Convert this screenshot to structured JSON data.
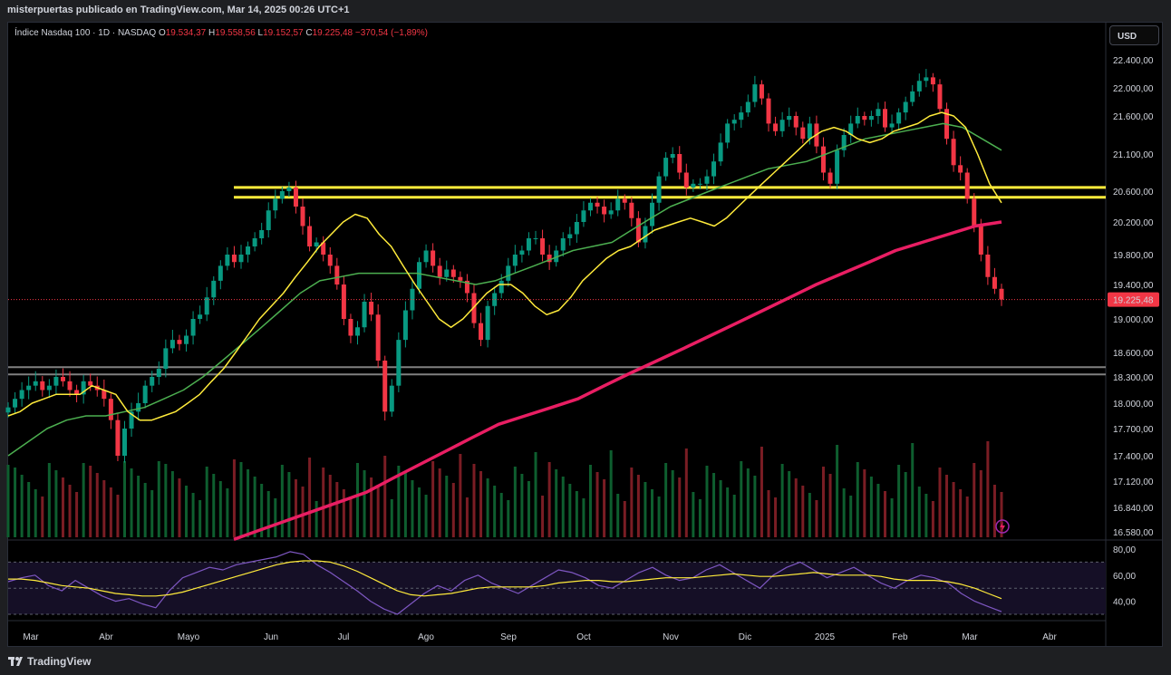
{
  "header": {
    "published": "misterpuertas publicado en TradingView.com, Mar 14, 2025 00:26 UTC+1"
  },
  "legend": {
    "symbol": "Índice Nasdaq 100 · 1D · NASDAQ",
    "open_label": "O",
    "open": "19.534,37",
    "high_label": "H",
    "high": "19.558,56",
    "low_label": "L",
    "low": "19.152,57",
    "close_label": "C",
    "close": "19.225,48",
    "change": "−370,54 (−1,89%)"
  },
  "currency_button": "USD",
  "footer": {
    "brand": "TradingView"
  },
  "colors": {
    "up": "#089981",
    "down": "#f23645",
    "ema_fast": "#2e3bd6",
    "ema_20": "#ffeb3b",
    "ema_50": "#4caf50",
    "ema_200": "#e91e63",
    "resistance": "#ffeb3b",
    "support": "#808080",
    "rsi": "#7e57c2"
  },
  "chart_data": [
    {
      "type": "candlestick",
      "x": [
        "Mar",
        "Abr",
        "Mayo",
        "Jun",
        "Jul",
        "Ago",
        "Sep",
        "Oct",
        "Nov",
        "Dic",
        "2025",
        "Feb",
        "Mar",
        "Abr"
      ],
      "y_ticks": [
        "22.400,00",
        "22.000,00",
        "21.600,00",
        "21.100,00",
        "20.600,00",
        "20.200,00",
        "19.800,00",
        "19.400,00",
        "19.000,00",
        "18.600,00",
        "18.300,00",
        "18.000,00",
        "17.700,00",
        "17.400,00",
        "17.120,00",
        "16.840,00",
        "16.580,00"
      ],
      "last_price": "19.225,48",
      "close_series": [
        17950,
        18050,
        18150,
        18200,
        18250,
        18150,
        18200,
        18300,
        18250,
        18150,
        18100,
        18250,
        18200,
        18150,
        18050,
        17800,
        17400,
        17700,
        17900,
        18000,
        18200,
        18300,
        18400,
        18650,
        18750,
        18700,
        18800,
        19000,
        19050,
        19250,
        19450,
        19650,
        19800,
        19700,
        19800,
        19900,
        20000,
        20100,
        20350,
        20500,
        20600,
        20650,
        20400,
        20150,
        19900,
        19950,
        19800,
        19650,
        19400,
        19000,
        18800,
        18900,
        19200,
        19050,
        18500,
        17900,
        18200,
        18750,
        19100,
        19350,
        19700,
        19850,
        19650,
        19500,
        19600,
        19500,
        19450,
        19300,
        18950,
        18750,
        19150,
        19300,
        19450,
        19650,
        19800,
        19850,
        20000,
        20000,
        19800,
        19700,
        19850,
        20000,
        20050,
        20200,
        20350,
        20450,
        20400,
        20300,
        20350,
        20500,
        20450,
        20250,
        19950,
        20150,
        20450,
        20800,
        21050,
        21100,
        20850,
        20650,
        20700,
        20700,
        20800,
        21000,
        21250,
        21500,
        21550,
        21650,
        21800,
        22050,
        21850,
        21500,
        21400,
        21550,
        21600,
        21450,
        21300,
        21500,
        21200,
        20850,
        20700,
        21150,
        21350,
        21500,
        21600,
        21550,
        21600,
        21700,
        21450,
        21500,
        21650,
        21800,
        21950,
        22100,
        22150,
        22050,
        21700,
        21300,
        20950,
        20850,
        20500,
        20150,
        19800,
        19500,
        19350,
        19225
      ],
      "ema_20_series": [
        17850,
        17900,
        18000,
        18050,
        18100,
        18100,
        18100,
        18200,
        18150,
        18100,
        17900,
        17800,
        17800,
        17850,
        17900,
        18000,
        18100,
        18250,
        18400,
        18600,
        18800,
        19000,
        19150,
        19300,
        19500,
        19700,
        19900,
        20050,
        20200,
        20300,
        20250,
        20050,
        19900,
        19650,
        19400,
        19200,
        19000,
        18900,
        19000,
        19150,
        19300,
        19400,
        19400,
        19300,
        19150,
        19050,
        19100,
        19250,
        19450,
        19600,
        19750,
        19850,
        19900,
        20000,
        20100,
        20150,
        20200,
        20250,
        20200,
        20150,
        20250,
        20400,
        20550,
        20700,
        20850,
        21000,
        21150,
        21300,
        21400,
        21450,
        21400,
        21300,
        21250,
        21300,
        21400,
        21450,
        21500,
        21600,
        21650,
        21600,
        21450,
        21100,
        20700,
        20450
      ],
      "ema_50_series": [
        17400,
        17550,
        17700,
        17800,
        17850,
        17850,
        17900,
        17950,
        18050,
        18150,
        18300,
        18500,
        18700,
        18900,
        19100,
        19300,
        19450,
        19500,
        19550,
        19550,
        19550,
        19550,
        19500,
        19450,
        19400,
        19450,
        19550,
        19650,
        19750,
        19850,
        19900,
        19950,
        20100,
        20250,
        20400,
        20500,
        20600,
        20700,
        20800,
        20900,
        20950,
        21000,
        21100,
        21200,
        21300,
        21350,
        21400,
        21450,
        21500,
        21450,
        21300,
        21150
      ],
      "ema_200_series": [
        16500,
        16600,
        16700,
        16800,
        16900,
        17000,
        17150,
        17300,
        17450,
        17600,
        17750,
        17850,
        17950,
        18050,
        18200,
        18350,
        18500,
        18650,
        18800,
        18950,
        19100,
        19250,
        19400,
        19550,
        19700,
        19850,
        19950,
        20050,
        20150,
        20200
      ],
      "resistance_levels": [
        20650,
        20520
      ],
      "support_levels": [
        18420,
        18330
      ]
    },
    {
      "type": "line",
      "name": "RSI",
      "y_ticks": [
        "80,00",
        "60,00",
        "40,00"
      ],
      "ylim": [
        30,
        80
      ],
      "bands": [
        70,
        50,
        30
      ],
      "values": [
        55,
        58,
        60,
        52,
        48,
        56,
        50,
        44,
        40,
        42,
        38,
        35,
        48,
        58,
        62,
        66,
        64,
        68,
        70,
        72,
        74,
        78,
        76,
        68,
        62,
        55,
        48,
        40,
        34,
        30,
        38,
        46,
        52,
        48,
        56,
        60,
        54,
        50,
        46,
        52,
        58,
        64,
        62,
        58,
        52,
        50,
        56,
        62,
        66,
        60,
        56,
        58,
        64,
        68,
        62,
        56,
        50,
        60,
        66,
        70,
        64,
        58,
        62,
        66,
        60,
        54,
        50,
        56,
        60,
        58,
        54,
        46,
        40,
        36,
        32
      ],
      "signal": [
        57,
        57,
        56,
        54,
        52,
        51,
        50,
        48,
        46,
        45,
        44,
        44,
        45,
        47,
        50,
        53,
        56,
        59,
        62,
        65,
        68,
        70,
        71,
        71,
        70,
        67,
        63,
        58,
        53,
        48,
        45,
        44,
        45,
        46,
        48,
        50,
        51,
        51,
        51,
        51,
        52,
        54,
        55,
        56,
        56,
        55,
        55,
        56,
        57,
        58,
        58,
        58,
        59,
        60,
        61,
        60,
        59,
        59,
        60,
        61,
        62,
        61,
        60,
        60,
        60,
        59,
        57,
        56,
        56,
        56,
        55,
        53,
        50,
        46,
        42
      ]
    }
  ]
}
